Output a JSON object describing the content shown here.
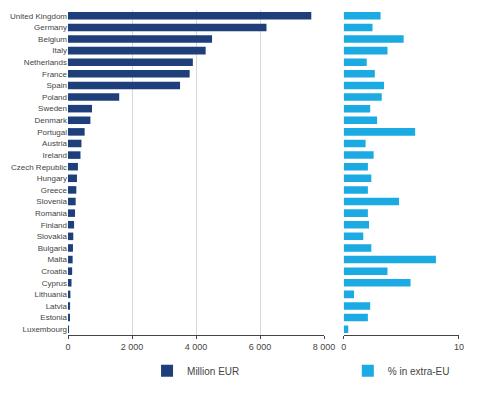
{
  "chart_data": [
    {
      "type": "bar",
      "orientation": "horizontal",
      "categories": [
        "United Kingdom",
        "Germany",
        "Belgium",
        "Italy",
        "Netherlands",
        "France",
        "Spain",
        "Poland",
        "Sweden",
        "Denmark",
        "Portugal",
        "Austria",
        "Ireland",
        "Czech Republic",
        "Hungary",
        "Greece",
        "Slovenia",
        "Romania",
        "Finland",
        "Slovakia",
        "Bulgaria",
        "Malta",
        "Croatia",
        "Cyprus",
        "Lithuania",
        "Latvia",
        "Estonia",
        "Luxembourg"
      ],
      "series": [
        {
          "name": "Million EUR",
          "color": "#1f3f7a",
          "values": [
            7600,
            6200,
            4500,
            4300,
            3900,
            3800,
            3500,
            1600,
            750,
            700,
            520,
            420,
            390,
            310,
            280,
            260,
            240,
            220,
            190,
            165,
            155,
            145,
            130,
            110,
            75,
            65,
            55,
            25
          ]
        }
      ],
      "xlim": [
        0,
        8000
      ],
      "xticks": [
        0,
        {
          "value": 2000,
          "label": "2 000"
        },
        {
          "value": 4000,
          "label": "4 000"
        },
        {
          "value": 6000,
          "label": "6 000"
        },
        {
          "value": 8000,
          "label": "8 000"
        }
      ],
      "grid": true,
      "legend": "bottom"
    },
    {
      "type": "bar",
      "orientation": "horizontal",
      "categories": [
        "United Kingdom",
        "Germany",
        "Belgium",
        "Italy",
        "Netherlands",
        "France",
        "Spain",
        "Poland",
        "Sweden",
        "Denmark",
        "Portugal",
        "Austria",
        "Ireland",
        "Czech Republic",
        "Hungary",
        "Greece",
        "Slovenia",
        "Romania",
        "Finland",
        "Slovakia",
        "Bulgaria",
        "Malta",
        "Croatia",
        "Cyprus",
        "Lithuania",
        "Latvia",
        "Estonia",
        "Luxembourg"
      ],
      "series": [
        {
          "name": "% in extra-EU",
          "color": "#1baae1",
          "values": [
            3.2,
            2.5,
            5.2,
            3.8,
            2.0,
            2.7,
            3.5,
            3.3,
            2.3,
            2.9,
            6.2,
            1.9,
            2.6,
            2.1,
            2.4,
            2.1,
            4.8,
            2.1,
            2.2,
            1.7,
            2.4,
            8.0,
            3.8,
            5.8,
            0.9,
            2.3,
            2.1,
            0.4
          ]
        }
      ],
      "xlim": [
        0,
        10
      ],
      "xticks": [
        0,
        10
      ],
      "grid": true,
      "legend": "bottom",
      "tick_labels": "x"
    }
  ]
}
